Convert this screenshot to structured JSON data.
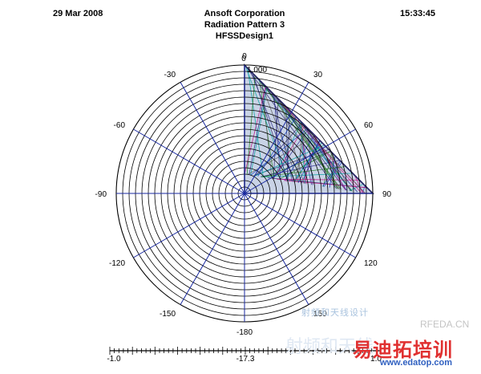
{
  "header": {
    "date": "29 Mar 2008",
    "time": "15:33:45",
    "company": "Ansoft Corporation",
    "plot_name": "Radiation Pattern 3",
    "design_name": "HFSSDesign1"
  },
  "chart_data": {
    "type": "polar",
    "angle_labels": [
      "0",
      "30",
      "60",
      "90",
      "120",
      "150",
      "-180",
      "-150",
      "-120",
      "-90",
      "-60",
      "-30"
    ],
    "angle_values_deg": [
      0,
      30,
      60,
      90,
      120,
      150,
      180,
      -150,
      -120,
      -90,
      -60,
      -30
    ],
    "radial_labels": [
      "1.000",
      "0"
    ],
    "radial_range": [
      0,
      1.0
    ],
    "ring_count": 20,
    "spoke_count": 12,
    "grid": true,
    "filled_wedge_deg": [
      0,
      90
    ],
    "trace_colors": [
      "#2c2c8c",
      "#1a7a1a",
      "#c01080",
      "#00a0a0",
      "#1040c0",
      "#606060",
      "#2a2a6a"
    ],
    "colorbar": {
      "min_label": "-1.0",
      "mid_label": "-17.3",
      "max_label": "1.0"
    }
  },
  "watermark": {
    "top_text": "射频和天线设计",
    "site_tag": "RFEDA.CN",
    "brand_cn": "易迪拓培训",
    "faint_cn": "射频和天线",
    "website": "www.edatop.com"
  }
}
